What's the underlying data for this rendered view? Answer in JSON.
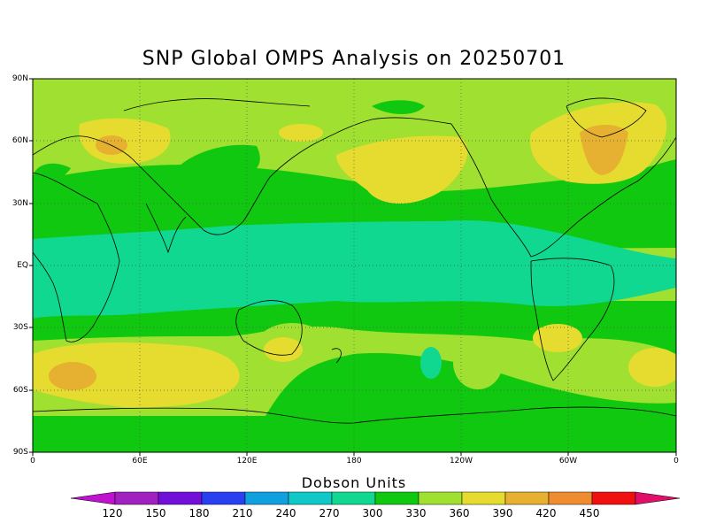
{
  "title": "SNP Global OMPS Analysis on 20250701",
  "lat_labels": [
    "90N",
    "60N",
    "30N",
    "EQ",
    "30S",
    "60S",
    "90S"
  ],
  "lon_labels": [
    "0",
    "60E",
    "120E",
    "180",
    "120W",
    "60W",
    "0"
  ],
  "colorbar": {
    "title": "Dobson Units",
    "ticks": [
      "120",
      "150",
      "180",
      "210",
      "240",
      "270",
      "300",
      "330",
      "360",
      "390",
      "420",
      "450"
    ],
    "colors": [
      "#a020c0",
      "#7010d8",
      "#2840f0",
      "#10a0e0",
      "#10c8c8",
      "#10d890",
      "#10c810",
      "#a0e030",
      "#e6dc30",
      "#e6b030",
      "#f08c30",
      "#f01010"
    ],
    "under_color": "#c010d0",
    "over_color": "#e0106a"
  }
}
